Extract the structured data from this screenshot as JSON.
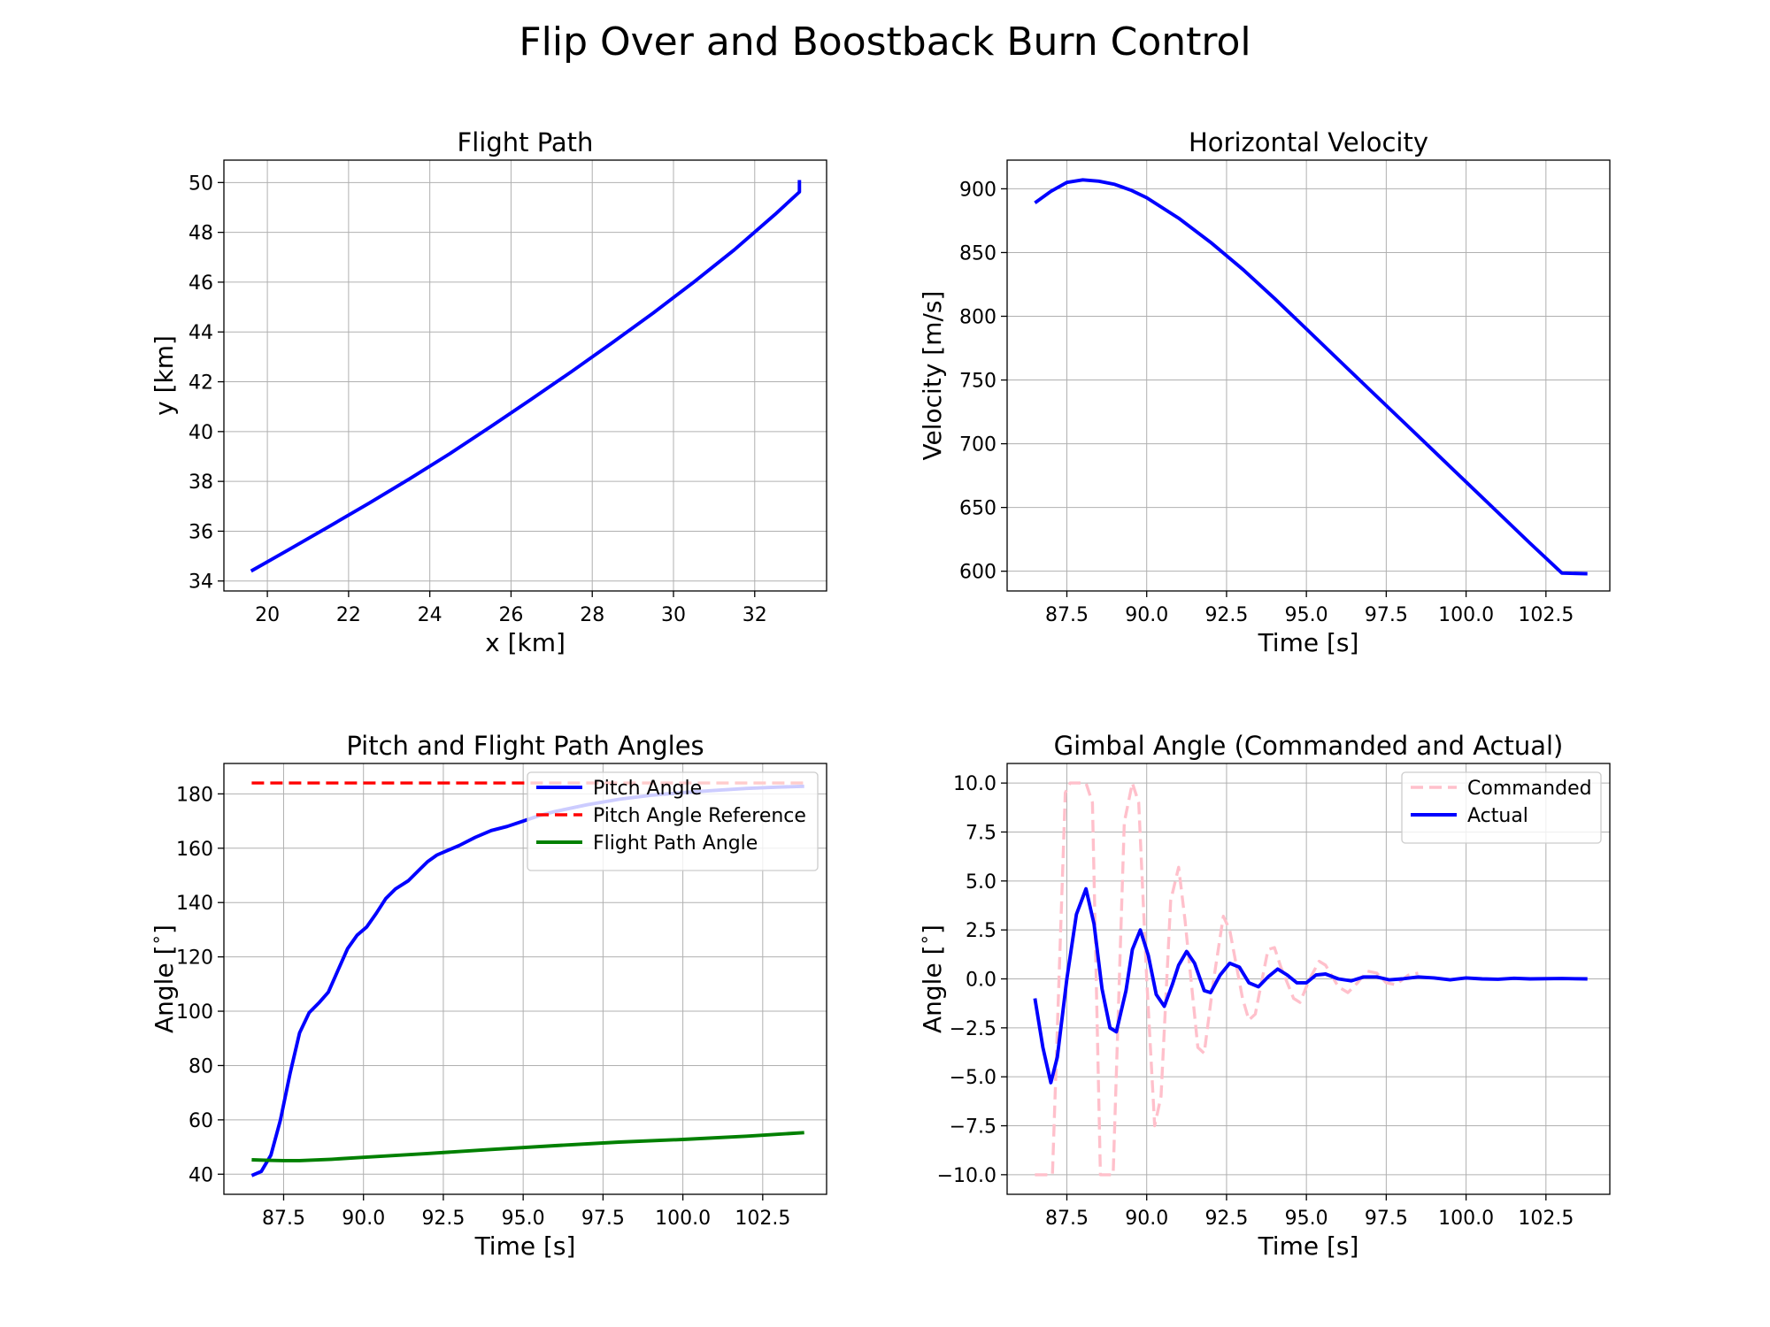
{
  "figure": {
    "title": "Flip Over and Boostback Burn Control"
  },
  "chart_data": [
    {
      "id": "flight_path",
      "type": "line",
      "title": "Flight Path",
      "xlabel": "x [km]",
      "ylabel": "y [km]",
      "xlim": [
        18.93,
        33.77
      ],
      "ylim": [
        33.6,
        50.9
      ],
      "xticks": [
        20,
        22,
        24,
        26,
        28,
        30,
        32
      ],
      "xtick_labels": [
        "20",
        "22",
        "24",
        "26",
        "28",
        "30",
        "32"
      ],
      "yticks": [
        34,
        36,
        38,
        40,
        42,
        44,
        46,
        48,
        50
      ],
      "ytick_labels": [
        "34",
        "36",
        "38",
        "40",
        "42",
        "44",
        "46",
        "48",
        "50"
      ],
      "grid": true,
      "legend": null,
      "series": [
        {
          "color": "#0000ff",
          "dash": "solid",
          "width": 3,
          "points": [
            [
              19.6,
              34.4
            ],
            [
              20.5,
              35.23
            ],
            [
              21.5,
              36.17
            ],
            [
              22.5,
              37.12
            ],
            [
              23.5,
              38.1
            ],
            [
              24.5,
              39.12
            ],
            [
              25.5,
              40.2
            ],
            [
              26.5,
              41.3
            ],
            [
              27.5,
              42.42
            ],
            [
              28.5,
              43.58
            ],
            [
              29.5,
              44.76
            ],
            [
              30.5,
              46.0
            ],
            [
              31.5,
              47.3
            ],
            [
              32.5,
              48.72
            ],
            [
              33.1,
              49.62
            ],
            [
              33.1,
              50.1
            ]
          ]
        }
      ]
    },
    {
      "id": "horizontal_velocity",
      "type": "line",
      "title": "Horizontal Velocity",
      "xlabel": "Time [s]",
      "ylabel": "Velocity [m/s]",
      "xlim": [
        85.63,
        104.5
      ],
      "ylim": [
        584.5,
        922.5
      ],
      "xticks": [
        87.5,
        90.0,
        92.5,
        95.0,
        97.5,
        100.0,
        102.5
      ],
      "xtick_labels": [
        "87.5",
        "90.0",
        "92.5",
        "95.0",
        "97.5",
        "100.0",
        "102.5"
      ],
      "yticks": [
        600,
        650,
        700,
        750,
        800,
        850,
        900
      ],
      "ytick_labels": [
        "600",
        "650",
        "700",
        "750",
        "800",
        "850",
        "900"
      ],
      "grid": true,
      "legend": null,
      "series": [
        {
          "color": "#0000ff",
          "dash": "solid",
          "width": 3,
          "points": [
            [
              86.5,
              889
            ],
            [
              87.0,
              898
            ],
            [
              87.5,
              905
            ],
            [
              88.0,
              907
            ],
            [
              88.5,
              906
            ],
            [
              89.0,
              903.5
            ],
            [
              89.5,
              899
            ],
            [
              90.0,
              893
            ],
            [
              91.0,
              877
            ],
            [
              92.0,
              858
            ],
            [
              93.0,
              837
            ],
            [
              94.0,
              814
            ],
            [
              95.0,
              790
            ],
            [
              96.0,
              766
            ],
            [
              97.0,
              742
            ],
            [
              98.0,
              718
            ],
            [
              99.0,
              694
            ],
            [
              100.0,
              670
            ],
            [
              101.0,
              646
            ],
            [
              102.0,
              622
            ],
            [
              103.0,
              598.5
            ],
            [
              103.8,
              598
            ]
          ]
        }
      ]
    },
    {
      "id": "pitch_angles",
      "type": "line",
      "title": "Pitch and Flight Path Angles",
      "xlabel": "Time [s]",
      "ylabel": "Angle [$^\\circ$]",
      "xlim": [
        85.63,
        104.5
      ],
      "ylim": [
        32.6,
        191.2
      ],
      "xticks": [
        87.5,
        90.0,
        92.5,
        95.0,
        97.5,
        100.0,
        102.5
      ],
      "xtick_labels": [
        "87.5",
        "90.0",
        "92.5",
        "95.0",
        "97.5",
        "100.0",
        "102.5"
      ],
      "yticks": [
        40,
        60,
        80,
        100,
        120,
        140,
        160,
        180
      ],
      "ytick_labels": [
        "40",
        "60",
        "80",
        "100",
        "120",
        "140",
        "160",
        "180"
      ],
      "grid": true,
      "legend": "top-right",
      "series": [
        {
          "name": "Pitch Angle",
          "color": "#0000ff",
          "dash": "solid",
          "width": 3,
          "points": [
            [
              86.5,
              39.5
            ],
            [
              86.8,
              41
            ],
            [
              87.1,
              47
            ],
            [
              87.4,
              60
            ],
            [
              87.7,
              77
            ],
            [
              88.0,
              92
            ],
            [
              88.3,
              99.5
            ],
            [
              88.6,
              103
            ],
            [
              88.9,
              107
            ],
            [
              89.2,
              115
            ],
            [
              89.5,
              123
            ],
            [
              89.8,
              128
            ],
            [
              90.1,
              131
            ],
            [
              90.4,
              136
            ],
            [
              90.7,
              141.5
            ],
            [
              91.0,
              145
            ],
            [
              91.4,
              148
            ],
            [
              91.7,
              151.5
            ],
            [
              92.0,
              155
            ],
            [
              92.3,
              157.5
            ],
            [
              92.7,
              159.5
            ],
            [
              93.0,
              161
            ],
            [
              93.5,
              164
            ],
            [
              94.0,
              166.5
            ],
            [
              94.5,
              168
            ],
            [
              95.0,
              170
            ],
            [
              95.5,
              172
            ],
            [
              96.0,
              173.5
            ],
            [
              97.0,
              176
            ],
            [
              98.0,
              178
            ],
            [
              99.0,
              179.5
            ],
            [
              100.0,
              180.5
            ],
            [
              101.0,
              181.3
            ],
            [
              102.0,
              182
            ],
            [
              103.0,
              182.5
            ],
            [
              103.8,
              182.8
            ]
          ]
        },
        {
          "name": "Pitch Angle Reference",
          "color": "#ff0000",
          "dash": "dashed",
          "width": 2.6,
          "points": [
            [
              86.5,
              184
            ],
            [
              103.8,
              184
            ]
          ]
        },
        {
          "name": "Flight Path Angle",
          "color": "#008000",
          "dash": "solid",
          "width": 3,
          "points": [
            [
              86.5,
              45.3
            ],
            [
              87.0,
              45.1
            ],
            [
              87.5,
              45.0
            ],
            [
              88.0,
              45.0
            ],
            [
              89.0,
              45.5
            ],
            [
              90.0,
              46.2
            ],
            [
              92.0,
              47.6
            ],
            [
              94.0,
              49.1
            ],
            [
              96.0,
              50.5
            ],
            [
              98.0,
              51.8
            ],
            [
              100.0,
              52.8
            ],
            [
              102.0,
              54.0
            ],
            [
              103.8,
              55.3
            ]
          ]
        }
      ]
    },
    {
      "id": "gimbal_angle",
      "type": "line",
      "title": "Gimbal Angle (Commanded and Actual)",
      "xlabel": "Time [s]",
      "ylabel": "Angle [$^\\circ$]",
      "xlim": [
        85.63,
        104.5
      ],
      "ylim": [
        -11.0,
        11.0
      ],
      "xticks": [
        87.5,
        90.0,
        92.5,
        95.0,
        97.5,
        100.0,
        102.5
      ],
      "xtick_labels": [
        "87.5",
        "90.0",
        "92.5",
        "95.0",
        "97.5",
        "100.0",
        "102.5"
      ],
      "yticks": [
        -10.0,
        -7.5,
        -5.0,
        -2.5,
        0.0,
        2.5,
        5.0,
        7.5,
        10.0
      ],
      "ytick_labels": [
        "−10.0",
        "−7.5",
        "−5.0",
        "−2.5",
        "0.0",
        "2.5",
        "5.0",
        "7.5",
        "10.0"
      ],
      "grid": true,
      "legend": "top-right",
      "series": [
        {
          "name": "Commanded",
          "color": "#ffc0cb",
          "dash": "dashed",
          "width": 2.6,
          "points": [
            [
              86.5,
              -10
            ],
            [
              87.05,
              -10
            ],
            [
              87.45,
              9.5
            ],
            [
              87.6,
              10
            ],
            [
              88.1,
              10
            ],
            [
              88.3,
              9
            ],
            [
              88.55,
              -10
            ],
            [
              88.95,
              -10
            ],
            [
              89.3,
              8
            ],
            [
              89.55,
              10
            ],
            [
              89.75,
              9
            ],
            [
              90.0,
              0
            ],
            [
              90.25,
              -7.5
            ],
            [
              90.45,
              -6
            ],
            [
              90.75,
              4
            ],
            [
              91.0,
              5.7
            ],
            [
              91.2,
              3
            ],
            [
              91.6,
              -3.5
            ],
            [
              91.8,
              -3.8
            ],
            [
              92.1,
              0
            ],
            [
              92.4,
              3.2
            ],
            [
              92.6,
              2.5
            ],
            [
              93.0,
              -1
            ],
            [
              93.2,
              -2.1
            ],
            [
              93.4,
              -1.8
            ],
            [
              93.8,
              1.5
            ],
            [
              94.0,
              1.6
            ],
            [
              94.2,
              0.6
            ],
            [
              94.6,
              -1
            ],
            [
              94.8,
              -1.2
            ],
            [
              95.1,
              0
            ],
            [
              95.4,
              0.9
            ],
            [
              95.6,
              0.7
            ],
            [
              96.0,
              -0.4
            ],
            [
              96.3,
              -0.7
            ],
            [
              96.6,
              -0.2
            ],
            [
              96.9,
              0.4
            ],
            [
              97.2,
              0.3
            ],
            [
              97.5,
              -0.2
            ],
            [
              97.8,
              -0.3
            ],
            [
              98.2,
              0.2
            ],
            [
              98.5,
              0.3
            ]
          ]
        },
        {
          "name": "Actual",
          "color": "#0000ff",
          "dash": "solid",
          "width": 3,
          "points": [
            [
              86.5,
              -1
            ],
            [
              86.75,
              -3.5
            ],
            [
              87.0,
              -5.3
            ],
            [
              87.2,
              -4
            ],
            [
              87.5,
              0
            ],
            [
              87.8,
              3.3
            ],
            [
              88.1,
              4.6
            ],
            [
              88.35,
              2.8
            ],
            [
              88.6,
              -0.5
            ],
            [
              88.85,
              -2.5
            ],
            [
              89.05,
              -2.7
            ],
            [
              89.35,
              -0.6
            ],
            [
              89.55,
              1.5
            ],
            [
              89.8,
              2.5
            ],
            [
              90.05,
              1.2
            ],
            [
              90.3,
              -0.8
            ],
            [
              90.55,
              -1.4
            ],
            [
              90.8,
              -0.3
            ],
            [
              91.0,
              0.7
            ],
            [
              91.25,
              1.4
            ],
            [
              91.5,
              0.8
            ],
            [
              91.8,
              -0.6
            ],
            [
              92.0,
              -0.7
            ],
            [
              92.3,
              0.2
            ],
            [
              92.6,
              0.8
            ],
            [
              92.9,
              0.6
            ],
            [
              93.2,
              -0.2
            ],
            [
              93.5,
              -0.4
            ],
            [
              93.8,
              0.1
            ],
            [
              94.1,
              0.5
            ],
            [
              94.4,
              0.2
            ],
            [
              94.7,
              -0.2
            ],
            [
              95.0,
              -0.2
            ],
            [
              95.3,
              0.2
            ],
            [
              95.6,
              0.25
            ],
            [
              96.0,
              0
            ],
            [
              96.4,
              -0.1
            ],
            [
              96.8,
              0.1
            ],
            [
              97.2,
              0.1
            ],
            [
              97.6,
              -0.05
            ],
            [
              98.0,
              0
            ],
            [
              98.5,
              0.1
            ],
            [
              99.0,
              0.05
            ],
            [
              99.5,
              -0.05
            ],
            [
              100.0,
              0.05
            ],
            [
              100.5,
              0
            ],
            [
              101.0,
              -0.02
            ],
            [
              101.5,
              0.03
            ],
            [
              102.0,
              0
            ],
            [
              103.0,
              0.02
            ],
            [
              103.8,
              0
            ]
          ]
        }
      ]
    }
  ]
}
